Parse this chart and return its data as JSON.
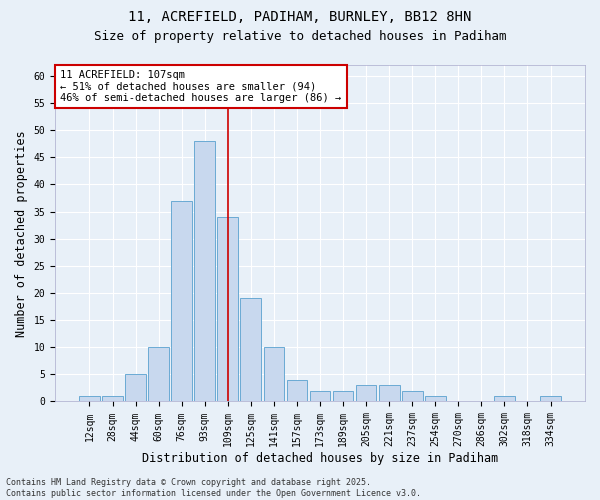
{
  "title_line1": "11, ACREFIELD, PADIHAM, BURNLEY, BB12 8HN",
  "title_line2": "Size of property relative to detached houses in Padiham",
  "xlabel": "Distribution of detached houses by size in Padiham",
  "ylabel": "Number of detached properties",
  "footer": "Contains HM Land Registry data © Crown copyright and database right 2025.\nContains public sector information licensed under the Open Government Licence v3.0.",
  "categories": [
    "12sqm",
    "28sqm",
    "44sqm",
    "60sqm",
    "76sqm",
    "93sqm",
    "109sqm",
    "125sqm",
    "141sqm",
    "157sqm",
    "173sqm",
    "189sqm",
    "205sqm",
    "221sqm",
    "237sqm",
    "254sqm",
    "270sqm",
    "286sqm",
    "302sqm",
    "318sqm",
    "334sqm"
  ],
  "values": [
    1,
    1,
    5,
    10,
    37,
    48,
    34,
    19,
    10,
    4,
    2,
    2,
    3,
    3,
    2,
    1,
    0,
    0,
    1,
    0,
    1
  ],
  "bar_color": "#c8d8ee",
  "bar_edge_color": "#6aaad4",
  "highlight_bar_index": 6,
  "highlight_line_color": "#cc0000",
  "annotation_text": "11 ACREFIELD: 107sqm\n← 51% of detached houses are smaller (94)\n46% of semi-detached houses are larger (86) →",
  "annotation_box_color": "#ffffff",
  "annotation_box_edge_color": "#cc0000",
  "ylim": [
    0,
    62
  ],
  "yticks": [
    0,
    5,
    10,
    15,
    20,
    25,
    30,
    35,
    40,
    45,
    50,
    55,
    60
  ],
  "bg_color": "#e8f0f8",
  "grid_color": "#ffffff",
  "title_fontsize": 10,
  "subtitle_fontsize": 9,
  "axis_label_fontsize": 8.5,
  "tick_fontsize": 7,
  "annotation_fontsize": 7.5,
  "footer_fontsize": 6
}
